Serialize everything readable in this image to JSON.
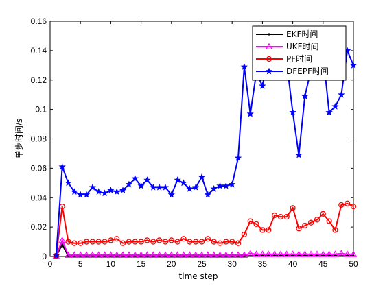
{
  "chart_data": {
    "type": "line",
    "title": "",
    "xlabel": "time step",
    "ylabel": "单步时间/s",
    "xlim": [
      0,
      50
    ],
    "ylim": [
      0,
      0.16
    ],
    "xticks": [
      "0",
      "5",
      "10",
      "15",
      "20",
      "25",
      "30",
      "35",
      "40",
      "45",
      "50"
    ],
    "yticks": [
      "0",
      "0.02",
      "0.04",
      "0.06",
      "0.08",
      "0.1",
      "0.12",
      "0.14",
      "0.16"
    ],
    "grid": false,
    "legend_position": "top-right",
    "x": [
      1,
      2,
      3,
      4,
      5,
      6,
      7,
      8,
      9,
      10,
      11,
      12,
      13,
      14,
      15,
      16,
      17,
      18,
      19,
      20,
      21,
      22,
      23,
      24,
      25,
      26,
      27,
      28,
      29,
      30,
      31,
      32,
      33,
      34,
      35,
      36,
      37,
      38,
      39,
      40,
      41,
      42,
      43,
      44,
      45,
      46,
      47,
      48,
      49,
      50
    ],
    "series": [
      {
        "name": "EKF时间",
        "color": "#000000",
        "marker": "dot",
        "values": [
          0.0003,
          0.008,
          0.0003,
          0.0003,
          0.0003,
          0.0003,
          0.0003,
          0.0003,
          0.0003,
          0.0003,
          0.0003,
          0.0003,
          0.0003,
          0.0003,
          0.0003,
          0.0003,
          0.0003,
          0.0003,
          0.0003,
          0.0003,
          0.0003,
          0.0003,
          0.0003,
          0.0003,
          0.0003,
          0.0003,
          0.0003,
          0.0003,
          0.0003,
          0.0003,
          0.0003,
          0.0003,
          0.0005,
          0.0005,
          0.0005,
          0.0005,
          0.0005,
          0.0005,
          0.0005,
          0.0005,
          0.0005,
          0.0005,
          0.0005,
          0.0005,
          0.0005,
          0.0005,
          0.0005,
          0.0005,
          0.0005,
          0.0005
        ]
      },
      {
        "name": "UKF时间",
        "color": "#ff00ff",
        "marker": "triangle",
        "values": [
          0.0005,
          0.011,
          0.001,
          0.001,
          0.001,
          0.001,
          0.001,
          0.001,
          0.001,
          0.001,
          0.001,
          0.001,
          0.001,
          0.001,
          0.001,
          0.001,
          0.001,
          0.001,
          0.001,
          0.001,
          0.001,
          0.001,
          0.001,
          0.001,
          0.001,
          0.001,
          0.001,
          0.001,
          0.001,
          0.001,
          0.001,
          0.001,
          0.002,
          0.0015,
          0.0015,
          0.0015,
          0.0015,
          0.0015,
          0.0015,
          0.0015,
          0.0015,
          0.0015,
          0.0015,
          0.0015,
          0.0015,
          0.0015,
          0.0015,
          0.002,
          0.0015,
          0.0015
        ]
      },
      {
        "name": "PF时间",
        "color": "#ff0000",
        "marker": "circle",
        "values": [
          0.0005,
          0.034,
          0.01,
          0.009,
          0.009,
          0.01,
          0.01,
          0.01,
          0.01,
          0.011,
          0.012,
          0.009,
          0.01,
          0.01,
          0.01,
          0.011,
          0.01,
          0.011,
          0.01,
          0.011,
          0.01,
          0.012,
          0.01,
          0.01,
          0.01,
          0.012,
          0.01,
          0.009,
          0.01,
          0.01,
          0.009,
          0.015,
          0.024,
          0.022,
          0.018,
          0.018,
          0.028,
          0.027,
          0.027,
          0.033,
          0.019,
          0.021,
          0.023,
          0.025,
          0.029,
          0.024,
          0.018,
          0.035,
          0.036,
          0.034
        ]
      },
      {
        "name": "DFEPF时间",
        "color": "#0000ff",
        "marker": "star",
        "values": [
          0.0005,
          0.061,
          0.05,
          0.044,
          0.042,
          0.042,
          0.047,
          0.044,
          0.043,
          0.045,
          0.044,
          0.045,
          0.049,
          0.053,
          0.048,
          0.052,
          0.047,
          0.047,
          0.047,
          0.042,
          0.052,
          0.05,
          0.046,
          0.047,
          0.054,
          0.042,
          0.046,
          0.048,
          0.048,
          0.049,
          0.067,
          0.129,
          0.097,
          0.125,
          0.116,
          0.137,
          0.126,
          0.137,
          0.132,
          0.098,
          0.069,
          0.109,
          0.127,
          0.134,
          0.137,
          0.098,
          0.102,
          0.11,
          0.14,
          0.13
        ]
      }
    ]
  }
}
